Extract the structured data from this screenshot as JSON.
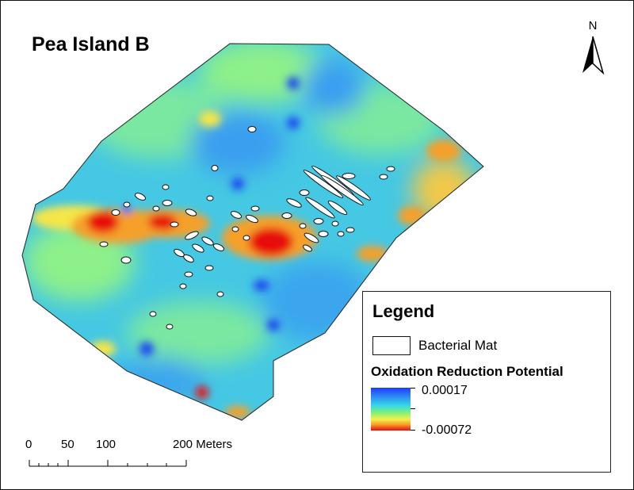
{
  "title": "Pea Island B",
  "north_arrow": {
    "letter": "N",
    "icon": "north-arrow-icon"
  },
  "legend": {
    "title": "Legend",
    "bacterial_mat_label": "Bacterial Mat",
    "ramp_title": "Oxidation Reduction Potential",
    "ramp_high": "0.00017",
    "ramp_low": "-0.00072",
    "ramp_colors": [
      "#1e3cff",
      "#2f8ef5",
      "#36d9e6",
      "#7ef07a",
      "#f5f04a",
      "#f5a02a",
      "#e80c0c"
    ]
  },
  "scale_bar": {
    "labels": [
      "0",
      "50",
      "100",
      "200 Meters"
    ]
  },
  "colors": {
    "background_field": "#45c8e3",
    "hotspot": "#e80c0c",
    "coldspot": "#1c46f0"
  }
}
